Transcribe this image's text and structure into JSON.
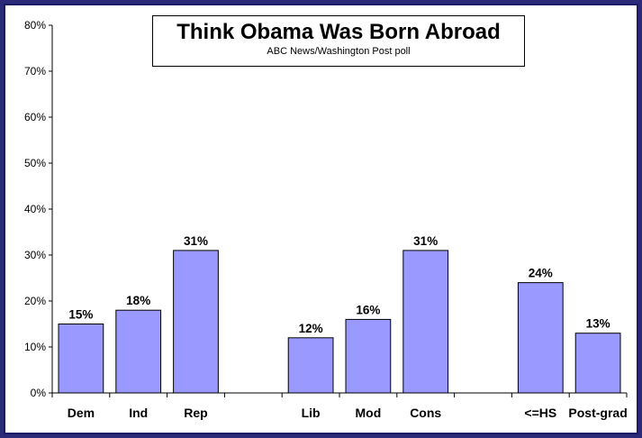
{
  "chart_data": {
    "type": "bar",
    "title": "Think Obama Was Born Abroad",
    "subtitle": "ABC News/Washington Post poll",
    "categories": [
      "Dem",
      "Ind",
      "Rep",
      "",
      "Lib",
      "Mod",
      "Cons",
      "",
      "<=HS",
      "Post-grad"
    ],
    "values": [
      15,
      18,
      31,
      null,
      12,
      16,
      31,
      null,
      24,
      13
    ],
    "data_labels": [
      "15%",
      "18%",
      "31%",
      "",
      "12%",
      "16%",
      "31%",
      "",
      "24%",
      "13%"
    ],
    "y_ticks": [
      "0%",
      "10%",
      "20%",
      "30%",
      "40%",
      "50%",
      "60%",
      "70%",
      "80%"
    ],
    "ylim": [
      0,
      80
    ],
    "grid": false,
    "legend": "none",
    "colors": {
      "bar": "#9999ff",
      "bar_border": "#000000",
      "frame": "#1c1c66",
      "background": "#ffffff"
    }
  }
}
